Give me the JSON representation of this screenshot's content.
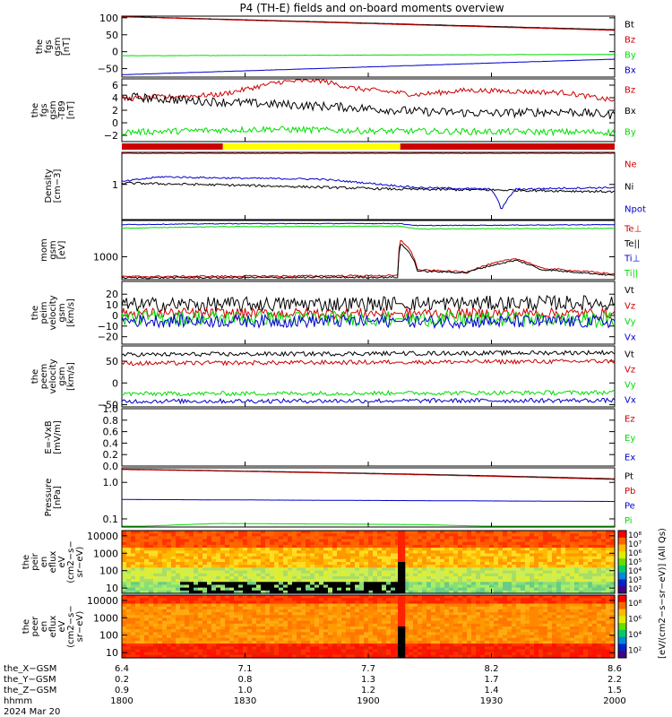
{
  "title": "P4 (TH-E) fields and on-board moments overview",
  "colors": {
    "black": "#000000",
    "red": "#cc0000",
    "green": "#00dd00",
    "blue": "#0000cc",
    "yellow": "#ffff00"
  },
  "chart_data": [
    {
      "id": "fgs",
      "type": "line",
      "ylabel": [
        "the",
        "fgs",
        "gsm",
        "[nT]"
      ],
      "ylim": [
        -75,
        105
      ],
      "yticks": [
        100,
        50,
        0,
        -50
      ],
      "ticklabels": [
        "100",
        "50",
        "0",
        "−50"
      ],
      "series": [
        {
          "name": "Bt",
          "color": "black",
          "start": 104,
          "end": 65,
          "noise": 0.3
        },
        {
          "name": "Bz",
          "color": "red",
          "start": 103,
          "end": 63,
          "noise": 0.3
        },
        {
          "name": "By",
          "color": "green",
          "start": -12,
          "end": -8,
          "noise": 0.4
        },
        {
          "name": "Bx",
          "color": "blue",
          "start": -68,
          "end": -22,
          "noise": 0.3
        }
      ]
    },
    {
      "id": "fgs-dsl",
      "type": "line",
      "ylabel": [
        "the",
        "fgs",
        "gsm",
        "-T89",
        "[nT]"
      ],
      "ylim": [
        -3,
        7
      ],
      "yticks": [
        6,
        4,
        2,
        0,
        -2
      ],
      "ticklabels": [
        "6",
        "4",
        "2",
        "0",
        "−2"
      ],
      "series": [
        {
          "name": "Bz",
          "color": "red",
          "points": [
            [
              0,
              3.8
            ],
            [
              0.2,
              4.5
            ],
            [
              0.32,
              6.5
            ],
            [
              0.4,
              6.8
            ],
            [
              0.47,
              5.5
            ],
            [
              0.6,
              4.5
            ],
            [
              0.7,
              5.2
            ],
            [
              0.8,
              5.0
            ],
            [
              0.9,
              4.8
            ],
            [
              1,
              3.5
            ]
          ],
          "noise": 0.4
        },
        {
          "name": "Bx",
          "color": "black",
          "points": [
            [
              0,
              4.2
            ],
            [
              0.15,
              3.5
            ],
            [
              0.3,
              3.0
            ],
            [
              0.45,
              2.5
            ],
            [
              0.6,
              1.8
            ],
            [
              0.75,
              1.5
            ],
            [
              0.9,
              1.8
            ],
            [
              1,
              1.2
            ]
          ],
          "noise": 0.7
        },
        {
          "name": "By",
          "color": "green",
          "points": [
            [
              0,
              -1.5
            ],
            [
              0.3,
              -1.0
            ],
            [
              0.5,
              -1.3
            ],
            [
              0.7,
              -1.4
            ],
            [
              1,
              -1.5
            ]
          ],
          "noise": 0.5
        }
      ]
    },
    {
      "id": "esa-mode",
      "type": "bar",
      "segments": [
        {
          "from": 0,
          "to": 0.205,
          "color": "red"
        },
        {
          "from": 0.205,
          "to": 0.565,
          "color": "yellow"
        },
        {
          "from": 0.565,
          "to": 1,
          "color": "red"
        }
      ]
    },
    {
      "id": "density",
      "type": "line",
      "scale": "log",
      "ylabel": [
        "Density",
        "[cm−3]"
      ],
      "ylim": [
        0.3,
        3
      ],
      "yticks": [
        1
      ],
      "ticklabels": [
        "1"
      ],
      "series": [
        {
          "name": "Ne",
          "color": "red",
          "points": [
            [
              0,
              2.9
            ],
            [
              1,
              2.9
            ]
          ],
          "noise": 0.01
        },
        {
          "name": "Ni",
          "color": "black",
          "points": [
            [
              0,
              1.05
            ],
            [
              0.3,
              0.95
            ],
            [
              0.56,
              0.85
            ],
            [
              0.8,
              0.82
            ],
            [
              1,
              0.78
            ]
          ],
          "noise": 0.04
        },
        {
          "name": "Npot",
          "color": "blue",
          "points": [
            [
              0,
              1.1
            ],
            [
              0.08,
              1.3
            ],
            [
              0.2,
              1.25
            ],
            [
              0.4,
              1.2
            ],
            [
              0.56,
              0.95
            ],
            [
              0.6,
              0.9
            ],
            [
              0.75,
              0.85
            ],
            [
              0.77,
              0.42
            ],
            [
              0.8,
              0.85
            ],
            [
              0.9,
              0.88
            ],
            [
              1,
              0.9
            ]
          ],
          "noise": 0.03
        }
      ]
    },
    {
      "id": "moms",
      "type": "line",
      "scale": "log",
      "ylabel": [
        "mom",
        "gsm",
        "[eV]"
      ],
      "ylim": [
        250,
        9000
      ],
      "yticks": [
        1000
      ],
      "ticklabels": [
        "1000"
      ],
      "series": [
        {
          "name": "Te⊥",
          "color": "red",
          "points": [
            [
              0,
              300
            ],
            [
              0.56,
              320
            ],
            [
              0.565,
              2800
            ],
            [
              0.6,
              450
            ],
            [
              0.7,
              400
            ],
            [
              0.8,
              900
            ],
            [
              0.85,
              500
            ],
            [
              1,
              350
            ]
          ],
          "noise": 0.05
        },
        {
          "name": "Te||",
          "color": "black",
          "points": [
            [
              0,
              280
            ],
            [
              0.56,
              290
            ],
            [
              0.565,
              2200
            ],
            [
              0.6,
              420
            ],
            [
              0.7,
              380
            ],
            [
              0.8,
              800
            ],
            [
              0.85,
              460
            ],
            [
              1,
              320
            ]
          ],
          "noise": 0.05
        },
        {
          "name": "Ti⊥",
          "color": "blue",
          "points": [
            [
              0,
              7000
            ],
            [
              0.2,
              7400
            ],
            [
              0.56,
              7500
            ],
            [
              0.6,
              6600
            ],
            [
              1,
              7000
            ]
          ],
          "noise": 0.02
        },
        {
          "name": "Ti||",
          "color": "green",
          "points": [
            [
              0,
              5600
            ],
            [
              0.2,
              6200
            ],
            [
              0.56,
              6400
            ],
            [
              0.6,
              5400
            ],
            [
              1,
              5600
            ]
          ],
          "noise": 0.02
        }
      ]
    },
    {
      "id": "peim",
      "type": "line",
      "ylabel": [
        "the",
        "peim",
        "velocity",
        "gsm",
        "[km/s]"
      ],
      "ylim": [
        -27,
        32
      ],
      "yticks": [
        20,
        10,
        0,
        -10,
        -20
      ],
      "ticklabels": [
        "20",
        "10",
        "0",
        "−10",
        "−20"
      ],
      "series": [
        {
          "name": "Vt",
          "color": "black",
          "points": [
            [
              0,
              10
            ],
            [
              1,
              12
            ]
          ],
          "noise": 7
        },
        {
          "name": "Vz",
          "color": "red",
          "points": [
            [
              0,
              2
            ],
            [
              1,
              2
            ]
          ],
          "noise": 5
        },
        {
          "name": "Vy",
          "color": "green",
          "points": [
            [
              0,
              -2
            ],
            [
              1,
              -4
            ]
          ],
          "noise": 7
        },
        {
          "name": "Vx",
          "color": "blue",
          "points": [
            [
              0,
              -5
            ],
            [
              1,
              -6
            ]
          ],
          "noise": 6
        }
      ]
    },
    {
      "id": "peem",
      "type": "line",
      "ylabel": [
        "the",
        "peem",
        "velocity",
        "gsm",
        "[km/s]"
      ],
      "ylim": [
        -55,
        85
      ],
      "yticks": [
        50,
        0,
        -50
      ],
      "ticklabels": [
        "50",
        "0",
        "−50"
      ],
      "series": [
        {
          "name": "Vt",
          "color": "black",
          "points": [
            [
              0,
              65
            ],
            [
              1,
              70
            ]
          ],
          "noise": 5
        },
        {
          "name": "Vz",
          "color": "red",
          "points": [
            [
              0,
              45
            ],
            [
              1,
              50
            ]
          ],
          "noise": 5
        },
        {
          "name": "Vy",
          "color": "green",
          "points": [
            [
              0,
              -25
            ],
            [
              1,
              -22
            ]
          ],
          "noise": 5
        },
        {
          "name": "Vx",
          "color": "blue",
          "points": [
            [
              0,
              -42
            ],
            [
              1,
              -40
            ]
          ],
          "noise": 5
        }
      ]
    },
    {
      "id": "efield",
      "type": "line",
      "ylabel": [
        "E=-VxB",
        "[mV/m]"
      ],
      "ylim": [
        0,
        1
      ],
      "yticks": [
        1.0,
        0.8,
        0.6,
        0.4,
        0.2,
        0.0
      ],
      "ticklabels": [
        "1.0",
        "0.8",
        "0.6",
        "0.4",
        "0.2",
        "0.0"
      ],
      "series": [
        {
          "name": "Ez",
          "color": "red"
        },
        {
          "name": "Ey",
          "color": "green"
        },
        {
          "name": "Ex",
          "color": "blue"
        }
      ]
    },
    {
      "id": "pressure",
      "type": "line",
      "scale": "log",
      "ylabel": [
        "Pressure",
        "[nPa]"
      ],
      "ylim": [
        0.06,
        2.5
      ],
      "yticks": [
        1.0,
        0.1
      ],
      "ticklabels": [
        "1.0",
        "0.1"
      ],
      "series": [
        {
          "name": "Pt",
          "color": "black",
          "points": [
            [
              0,
              2.3
            ],
            [
              1,
              1.25
            ]
          ],
          "noise": 0.003
        },
        {
          "name": "Pb",
          "color": "red",
          "points": [
            [
              0,
              2.25
            ],
            [
              1,
              1.2
            ]
          ],
          "noise": 0.003
        },
        {
          "name": "Pe",
          "color": "blue",
          "points": [
            [
              0,
              0.34
            ],
            [
              1,
              0.3
            ]
          ],
          "noise": 0.003
        },
        {
          "name": "Pi",
          "color": "green",
          "points": [
            [
              0,
              0.06
            ],
            [
              0.2,
              0.075
            ],
            [
              0.6,
              0.07
            ],
            [
              1,
              0.05
            ]
          ],
          "noise": 0.003
        }
      ]
    },
    {
      "id": "peir-spec",
      "type": "heatmap",
      "ylabel": [
        "the",
        "peir",
        "en",
        "eflux",
        "eV",
        "(cm2−s−",
        "sr−eV)"
      ],
      "ylim": [
        5,
        20000
      ],
      "scale": "log",
      "yticks": [
        10000,
        1000,
        100,
        10
      ],
      "ticklabels": [
        "10000",
        "1000",
        "100",
        "10"
      ],
      "gap": {
        "from": 0.56,
        "to": 0.575
      }
    },
    {
      "id": "peer-spec",
      "type": "heatmap",
      "ylabel": [
        "the",
        "peer",
        "en",
        "eflux",
        "eV",
        "(cm2−s−",
        "sr−eV)"
      ],
      "ylim": [
        5,
        20000
      ],
      "scale": "log",
      "yticks": [
        10000,
        1000,
        100,
        10
      ],
      "ticklabels": [
        "10000",
        "1000",
        "100",
        "10"
      ],
      "gap": {
        "from": 0.56,
        "to": 0.575
      }
    }
  ],
  "colorbar": {
    "top_labels": [
      "10⁸",
      "10⁷",
      "10⁶",
      "10⁵",
      "10⁴",
      "10³",
      "10²"
    ],
    "bottom_labels": [
      "10⁸",
      "10⁶",
      "10⁴",
      "10²"
    ],
    "side_label": "[eV/(cm2−s−sr−eV)] (All Qs)"
  },
  "xaxis": {
    "row_names": [
      "the_X−GSM",
      "the_Y−GSM",
      "the_Z−GSM",
      "hhmm",
      "2024 Mar 20"
    ],
    "ticks": [
      {
        "x": 0,
        "X": "6.4",
        "Y": "0.2",
        "Z": "0.9",
        "hhmm": "1800"
      },
      {
        "x": 0.25,
        "X": "7.1",
        "Y": "0.8",
        "Z": "1.0",
        "hhmm": "1830"
      },
      {
        "x": 0.5,
        "X": "7.7",
        "Y": "1.3",
        "Z": "1.2",
        "hhmm": "1900"
      },
      {
        "x": 0.75,
        "X": "8.2",
        "Y": "1.7",
        "Z": "1.4",
        "hhmm": "1930"
      },
      {
        "x": 1,
        "X": "8.6",
        "Y": "2.2",
        "Z": "1.5",
        "hhmm": "2000"
      }
    ]
  }
}
